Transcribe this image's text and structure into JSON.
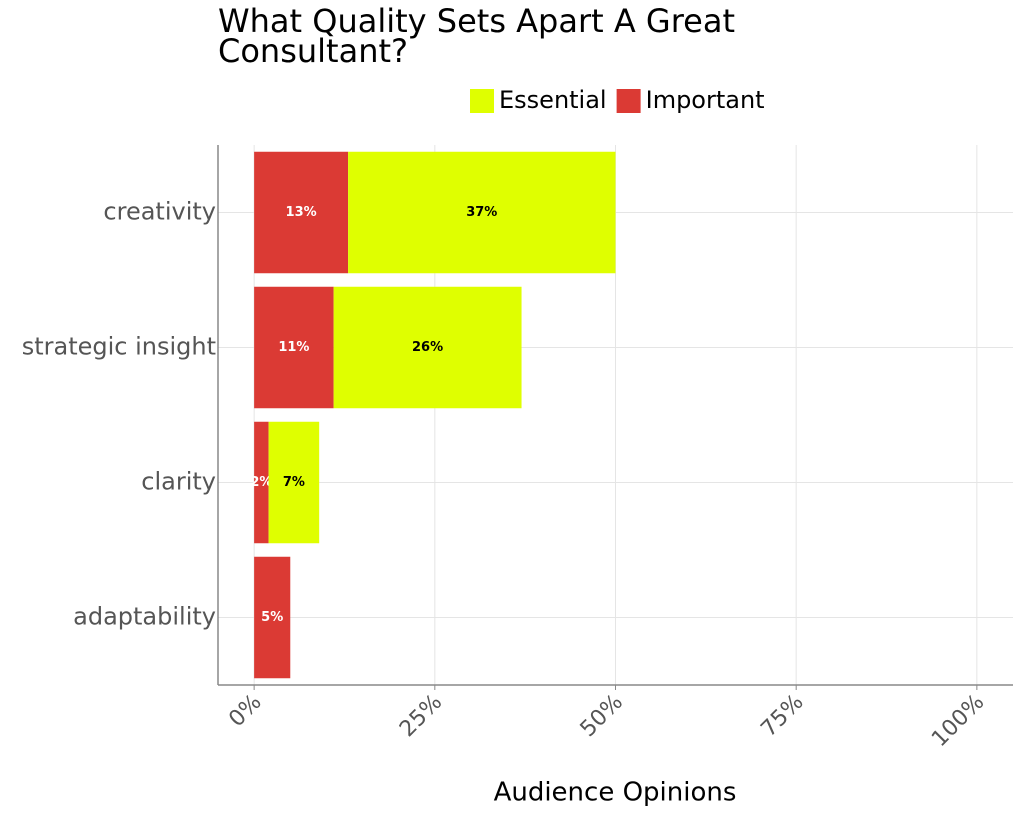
{
  "chart_data": {
    "type": "stacked-bar-horizontal",
    "title": "What Quality Sets Apart A Great Consultant?",
    "x_label": "Audience Opinions",
    "categories": [
      "creativity",
      "strategic insight",
      "clarity",
      "adaptability"
    ],
    "series": [
      {
        "name": "Essential",
        "color": "#dfff00",
        "values": [
          37,
          26,
          7,
          null
        ],
        "value_labels": [
          "37%",
          "26%",
          "7%",
          null
        ]
      },
      {
        "name": "Important",
        "color": "#db3a34",
        "values": [
          13,
          11,
          2,
          5
        ],
        "value_labels": [
          "13%",
          "11%",
          "2%",
          "5%"
        ]
      }
    ],
    "xlim": [
      -5,
      105
    ],
    "xticks": [
      {
        "value": 0,
        "label": "0%"
      },
      {
        "value": 25,
        "label": "25%"
      },
      {
        "value": 50,
        "label": "50%"
      },
      {
        "value": 75,
        "label": "75%"
      },
      {
        "value": 100,
        "label": "100%"
      }
    ],
    "grid": true
  }
}
